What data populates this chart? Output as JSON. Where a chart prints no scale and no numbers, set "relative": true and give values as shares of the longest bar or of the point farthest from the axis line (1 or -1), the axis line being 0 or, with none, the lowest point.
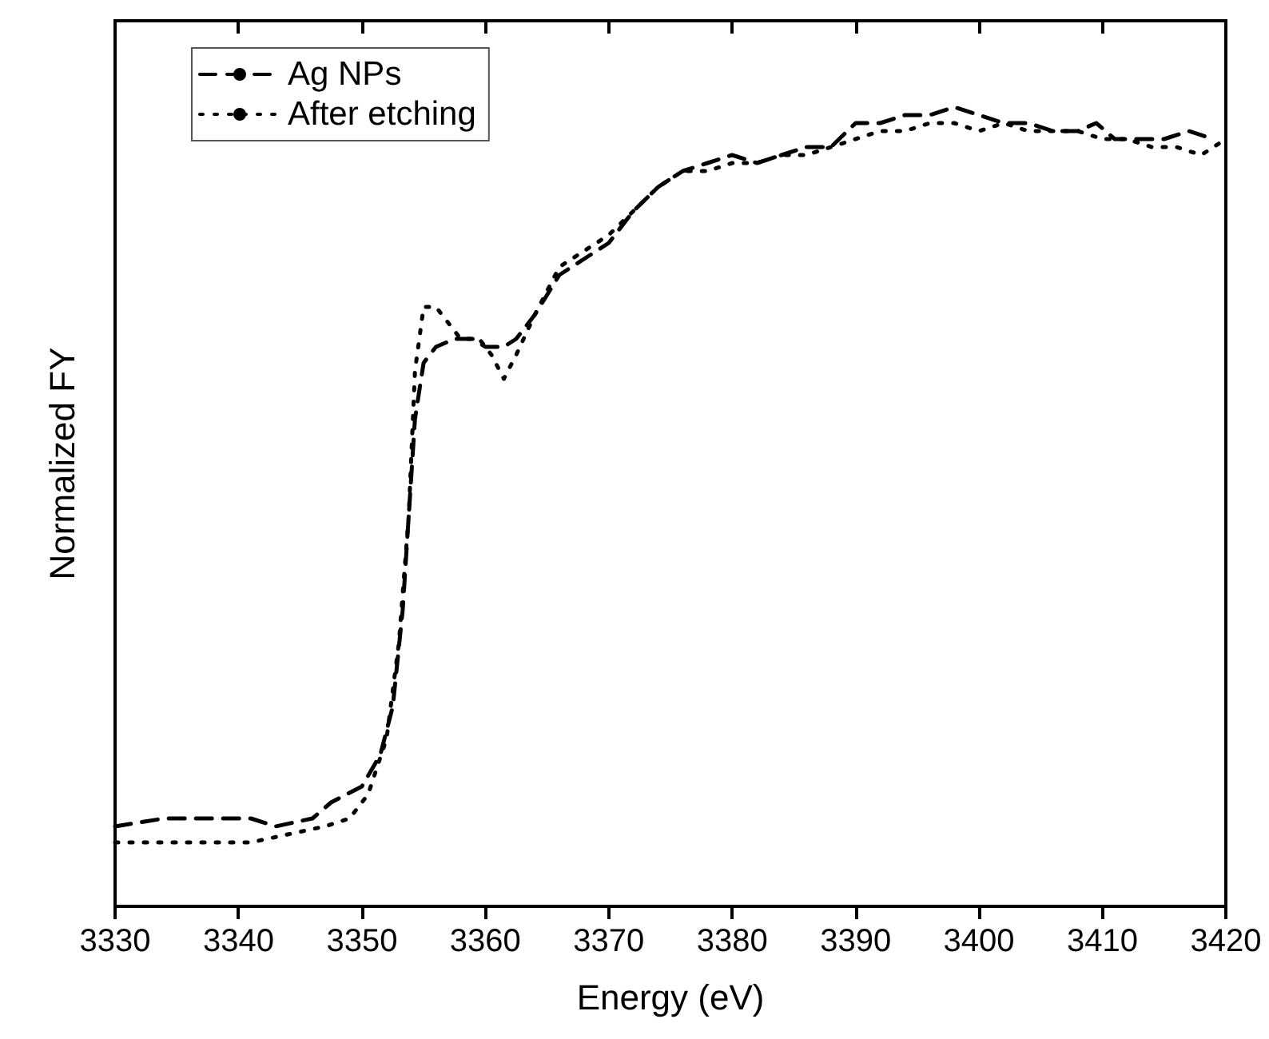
{
  "chart_data": {
    "type": "line",
    "xlabel": "Energy (eV)",
    "ylabel": "Normalized FY",
    "relative": true,
    "xlim": [
      3330,
      3420
    ],
    "xticks": [
      3330,
      3340,
      3350,
      3360,
      3370,
      3380,
      3390,
      3400,
      3410,
      3420
    ],
    "grid": false,
    "legend": "top left",
    "marker": "none",
    "series": [
      {
        "name": "Ag NPs",
        "color": "#000000",
        "line_style": "dashed",
        "x": [
          3330,
          3334,
          3338,
          3341,
          3343,
          3346,
          3347.5,
          3350,
          3351.5,
          3352.5,
          3353.3,
          3353.8,
          3354.3,
          3355,
          3356,
          3357.5,
          3359,
          3360,
          3361.5,
          3362.5,
          3364,
          3366,
          3368,
          3370,
          3372,
          3374,
          3376,
          3378,
          3380,
          3382,
          3384,
          3386,
          3388,
          3390,
          3392,
          3394,
          3396,
          3398,
          3400,
          3402,
          3404,
          3406,
          3408,
          3409.5,
          3411,
          3413,
          3415,
          3417,
          3419
        ],
        "values": [
          0.1,
          0.11,
          0.11,
          0.11,
          0.1,
          0.11,
          0.13,
          0.15,
          0.19,
          0.25,
          0.37,
          0.49,
          0.61,
          0.68,
          0.7,
          0.71,
          0.71,
          0.7,
          0.7,
          0.71,
          0.74,
          0.79,
          0.81,
          0.83,
          0.87,
          0.9,
          0.92,
          0.93,
          0.94,
          0.93,
          0.94,
          0.95,
          0.95,
          0.98,
          0.98,
          0.99,
          0.99,
          1.0,
          0.99,
          0.98,
          0.98,
          0.97,
          0.97,
          0.98,
          0.96,
          0.96,
          0.96,
          0.97,
          0.96
        ]
      },
      {
        "name": "After etching",
        "color": "#000000",
        "line_style": "dotted",
        "x": [
          3330,
          3334,
          3338,
          3341,
          3344,
          3347,
          3349,
          3350.5,
          3352,
          3353,
          3353.8,
          3354.3,
          3355,
          3356,
          3357,
          3358,
          3359.5,
          3360.5,
          3361.5,
          3362.5,
          3364,
          3366,
          3368,
          3370,
          3372,
          3374,
          3376,
          3378,
          3380,
          3382,
          3384,
          3386,
          3388,
          3390,
          3392,
          3394,
          3396,
          3398,
          3400,
          3402,
          3404,
          3406,
          3408,
          3410,
          3412,
          3414,
          3416,
          3418,
          3420
        ],
        "values": [
          0.08,
          0.08,
          0.08,
          0.08,
          0.09,
          0.1,
          0.11,
          0.14,
          0.21,
          0.33,
          0.49,
          0.67,
          0.75,
          0.75,
          0.73,
          0.71,
          0.71,
          0.69,
          0.66,
          0.69,
          0.74,
          0.8,
          0.82,
          0.84,
          0.87,
          0.9,
          0.92,
          0.92,
          0.93,
          0.93,
          0.94,
          0.94,
          0.95,
          0.96,
          0.97,
          0.97,
          0.98,
          0.98,
          0.97,
          0.98,
          0.97,
          0.97,
          0.97,
          0.96,
          0.96,
          0.95,
          0.95,
          0.94,
          0.96
        ]
      }
    ]
  }
}
